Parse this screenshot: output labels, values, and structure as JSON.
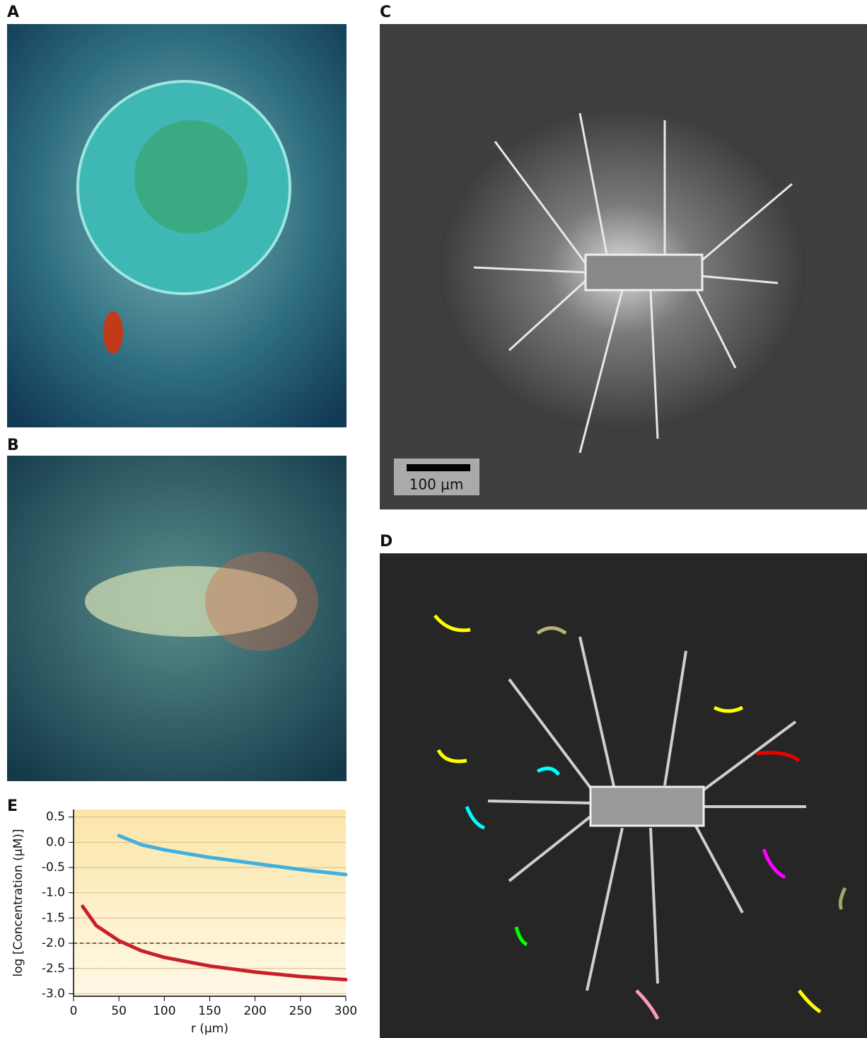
{
  "figure": {
    "panel_labels": [
      "A",
      "B",
      "C",
      "D",
      "E"
    ],
    "scale_bar_label": "100 μm"
  },
  "chart_data": {
    "type": "line",
    "xlabel": "r (μm)",
    "ylabel": "log [Concentration (μM)]",
    "xlim": [
      0,
      300
    ],
    "xticks": [
      0,
      50,
      100,
      150,
      200,
      250,
      300
    ],
    "ylim": [
      -3.05,
      0.65
    ],
    "yticks": [
      0.5,
      {
        "value": 0,
        "label": "0.0"
      },
      -0.5,
      {
        "value": -1,
        "label": "-1.0"
      },
      -1.5,
      {
        "value": -2,
        "label": "-2.0"
      },
      -2.5,
      {
        "value": -3,
        "label": "-3.0"
      }
    ],
    "grid": true,
    "hline": -2,
    "series": [
      {
        "color": "#3fb0e0",
        "x": [
          50,
          75,
          100,
          150,
          200,
          250,
          300
        ],
        "values": [
          0.13,
          -0.05,
          -0.15,
          -0.3,
          -0.42,
          -0.54,
          -0.64
        ]
      },
      {
        "color": "#c8202a",
        "x": [
          10,
          25,
          50,
          75,
          100,
          150,
          200,
          250,
          300
        ],
        "values": [
          -1.27,
          -1.65,
          -1.95,
          -2.15,
          -2.28,
          -2.45,
          -2.57,
          -2.66,
          -2.72
        ]
      }
    ]
  }
}
